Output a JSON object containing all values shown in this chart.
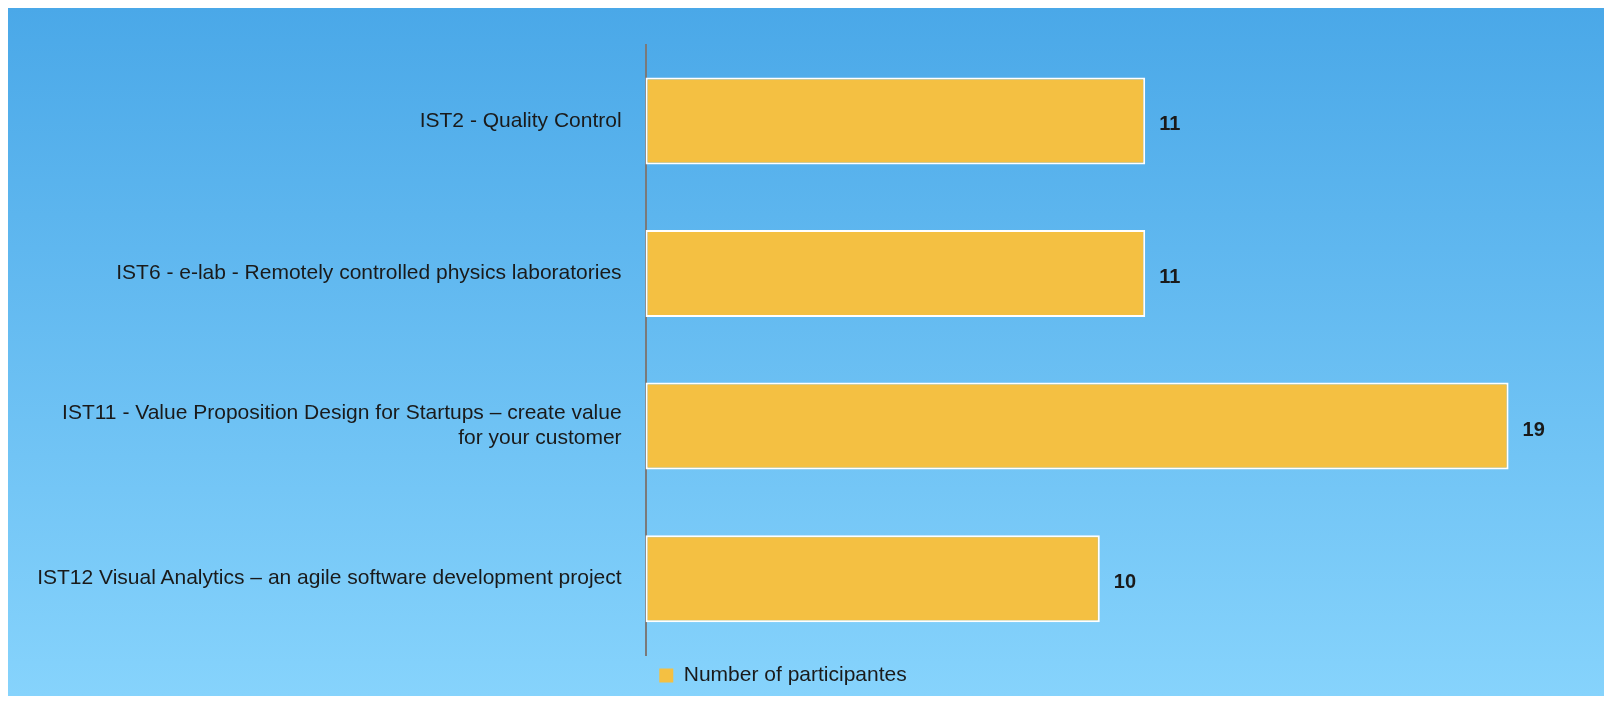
{
  "chart_data": {
    "type": "bar",
    "orientation": "horizontal",
    "categories": [
      "IST2 - Quality Control",
      "IST6 - e-lab - Remotely controlled physics laboratories",
      "IST11 - Value Proposition Design for Startups – create value for your customer",
      "IST12 Visual Analytics – an agile software development project"
    ],
    "series": [
      {
        "name": "Number of participantes",
        "color": "#f4c042",
        "values": [
          11,
          11,
          19,
          10
        ]
      }
    ],
    "data_labels": true,
    "legend": "bottom",
    "grid": false
  }
}
